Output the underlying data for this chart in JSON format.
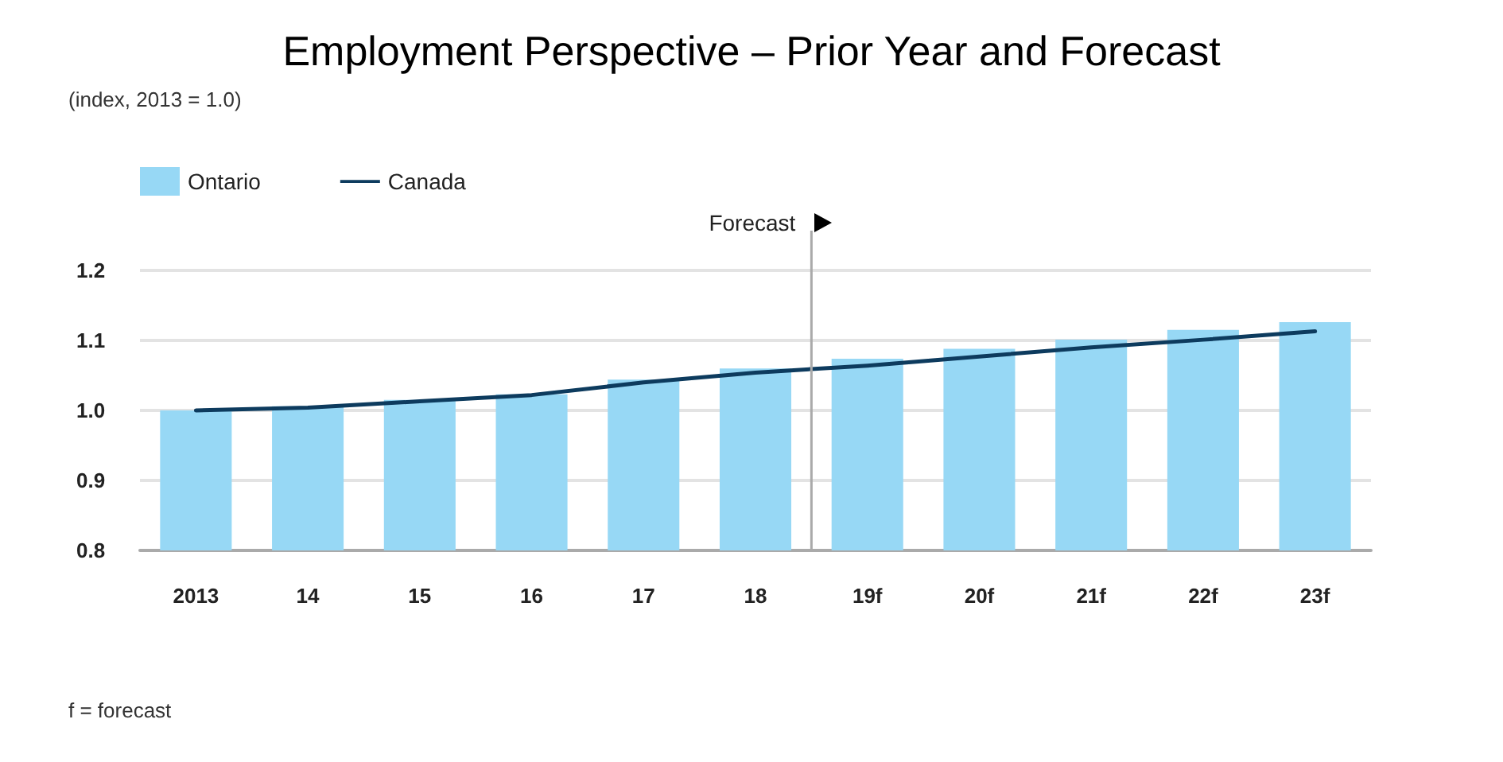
{
  "chart_data": {
    "type": "bar",
    "title": "Employment Perspective – Prior Year and Forecast",
    "categories": [
      "2013",
      "14",
      "15",
      "16",
      "17",
      "18",
      "19f",
      "20f",
      "21f",
      "22f",
      "23f"
    ],
    "series": [
      {
        "name": "Ontario",
        "color": "#97d8f5",
        "values": [
          1.0,
          1.006,
          1.015,
          1.023,
          1.044,
          1.06,
          1.074,
          1.088,
          1.101,
          1.115,
          1.126
        ]
      },
      {
        "name": "Canada",
        "type": "line",
        "color": "#0d3b5e",
        "values": [
          1.0,
          1.004,
          1.013,
          1.022,
          1.04,
          1.054,
          1.064,
          1.077,
          1.09,
          1.101,
          1.113
        ]
      }
    ],
    "ylim": [
      0.8,
      1.2
    ],
    "yticks": [
      0.8,
      0.9,
      {
        "value": 1.0,
        "label": "1.0"
      },
      1.1,
      1.2
    ],
    "grid": "y",
    "legend": "top left",
    "marker": "none",
    "line_style": "solid",
    "ref_lines": [
      {
        "axis": "x",
        "value": "19f",
        "label": "Forecast",
        "color": "#aaaaaa"
      }
    ],
    "annotations": [
      "(index, 2013 = 1.0)",
      "f = forecast"
    ]
  }
}
